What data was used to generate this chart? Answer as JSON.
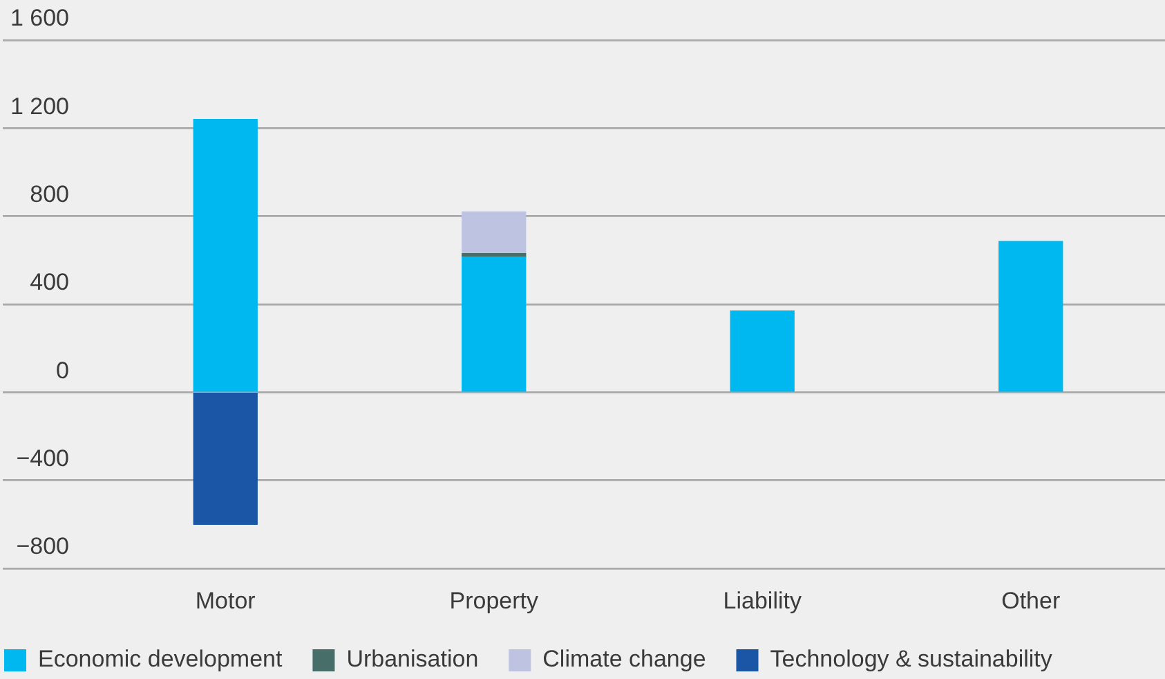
{
  "chart_data": {
    "type": "bar",
    "stacked": true,
    "categories": [
      "Motor",
      "Property",
      "Liability",
      "Other"
    ],
    "series": [
      {
        "name": "Economic development",
        "color": "#00b8f0",
        "values": [
          1240,
          615,
          370,
          685
        ]
      },
      {
        "name": "Urbanisation",
        "color": "#486e69",
        "values": [
          null,
          15,
          null,
          null
        ]
      },
      {
        "name": "Climate change",
        "color": "#bfc3e2",
        "values": [
          null,
          190,
          null,
          null
        ]
      },
      {
        "name": "Technology & sustainability",
        "color": "#1b55a5",
        "values": [
          -600,
          null,
          null,
          null
        ]
      }
    ],
    "ylim": [
      -800,
      1600
    ],
    "yticks": [
      {
        "value": -800,
        "label": "−800"
      },
      {
        "value": -400,
        "label": "−400"
      },
      0,
      400,
      800,
      {
        "value": 1200,
        "label": "1 200"
      },
      {
        "value": 1600,
        "label": "1 600"
      }
    ],
    "grid": "y",
    "legend": "bottom left"
  }
}
